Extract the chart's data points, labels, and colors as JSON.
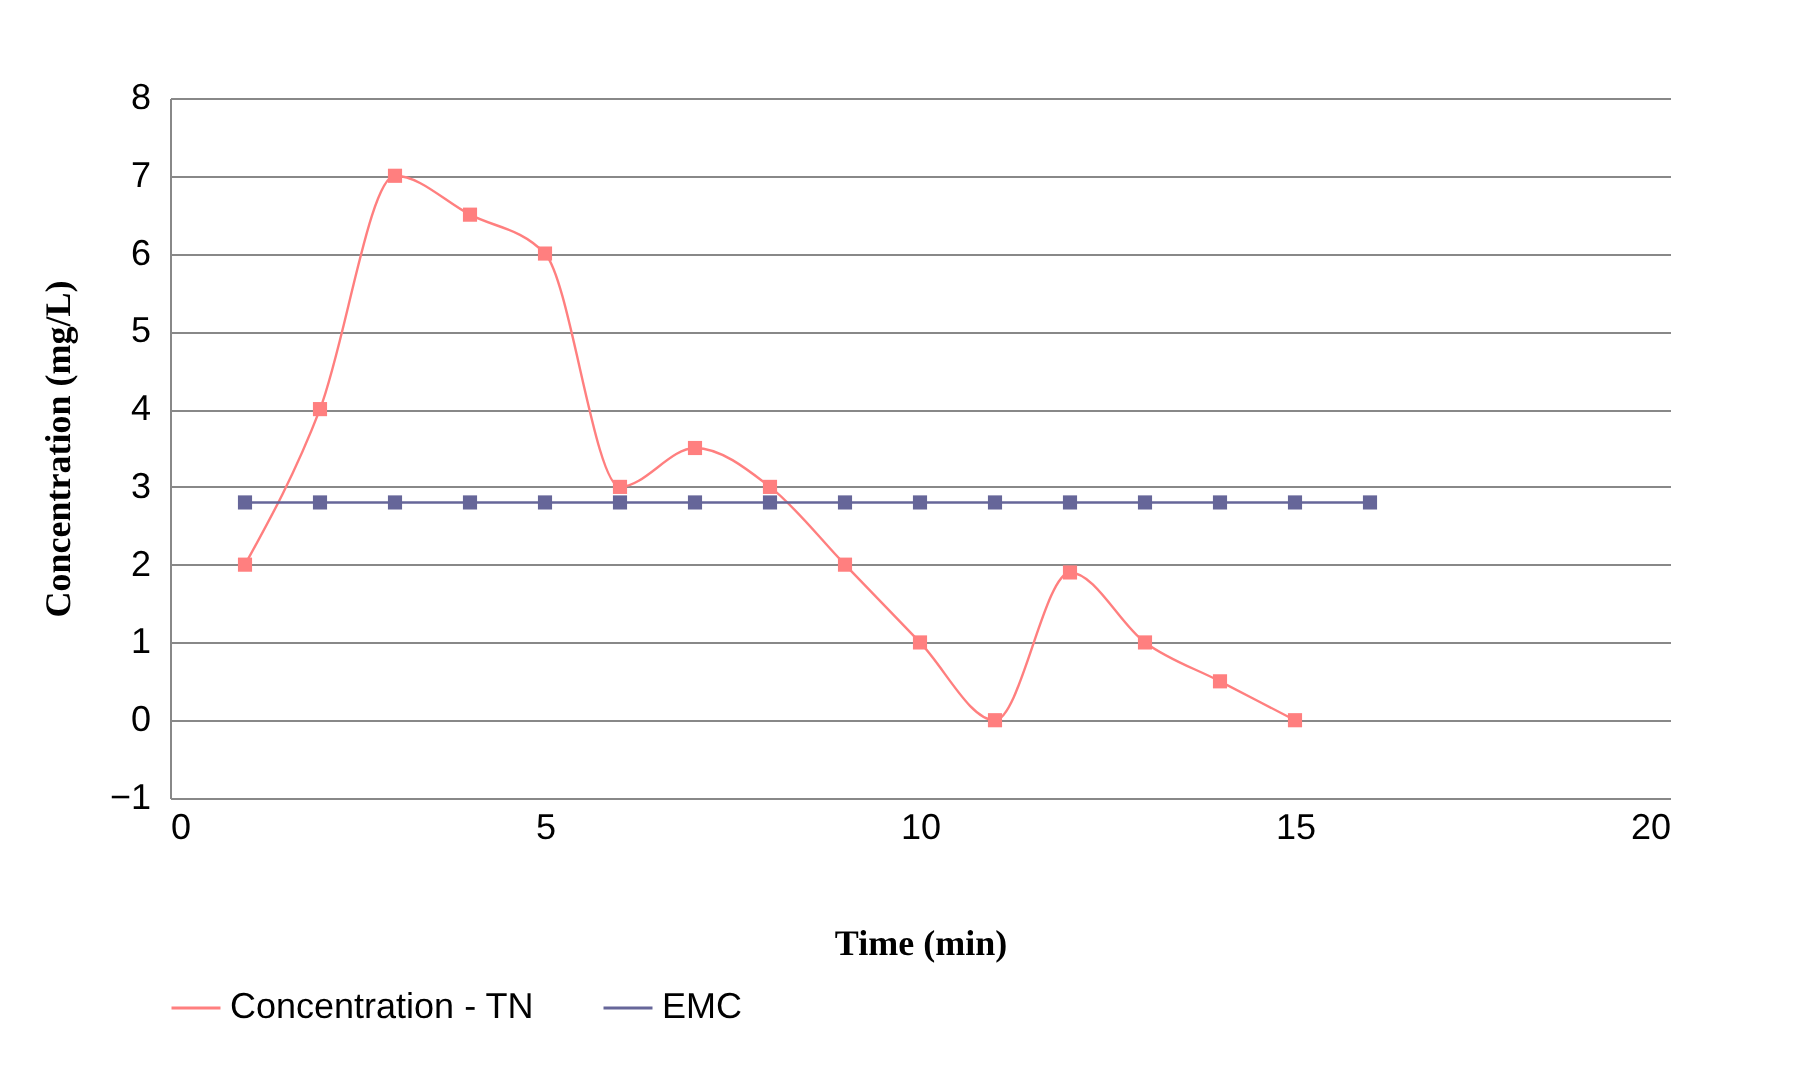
{
  "chart_data": {
    "type": "line",
    "xlabel": "Time (min)",
    "ylabel": "Concentration (mg/L)",
    "x": [
      1,
      2,
      3,
      4,
      5,
      6,
      7,
      8,
      9,
      10,
      11,
      12,
      13,
      14,
      15
    ],
    "series": [
      {
        "name": "Concentration - TN",
        "color": "#ff7f7f",
        "values": [
          2,
          4,
          7,
          6.5,
          6,
          3,
          3.5,
          3,
          2,
          1,
          0,
          1.9,
          1,
          0.5,
          0
        ]
      },
      {
        "name": "EMC",
        "color": "#666699",
        "x": [
          1,
          2,
          3,
          4,
          5,
          6,
          7,
          8,
          9,
          10,
          11,
          12,
          13,
          14,
          15,
          16
        ],
        "values": [
          2.8,
          2.8,
          2.8,
          2.8,
          2.8,
          2.8,
          2.8,
          2.8,
          2.8,
          2.8,
          2.8,
          2.8,
          2.8,
          2.8,
          2.8,
          2.8
        ]
      }
    ],
    "xlim": [
      0,
      20
    ],
    "xticks": [
      0,
      5,
      10,
      15,
      20
    ],
    "ylim": [
      -1,
      8
    ],
    "yticks": [
      -1,
      0,
      1,
      2,
      3,
      4,
      5,
      6,
      7,
      8
    ],
    "grid": "y",
    "legend": "bottom",
    "marker": "square",
    "line_style": "solid"
  }
}
